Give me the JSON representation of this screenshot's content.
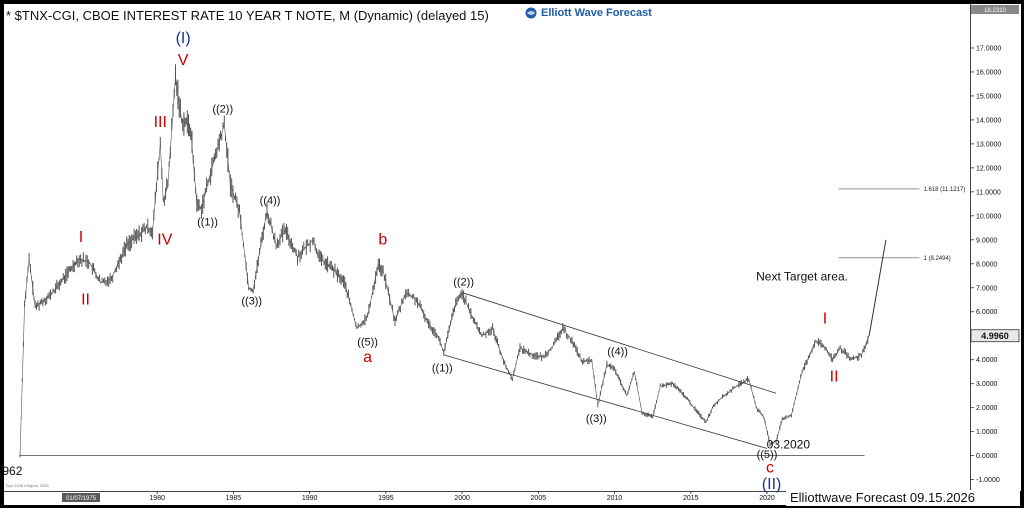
{
  "window": {
    "title": "* $TNX-CGI, CBOE INTEREST RATE 10 YEAR T NOTE, M (Dynamic) (delayed 15)",
    "logo_text": "Elliott Wave Forecast",
    "footer": "Elliottwave Forecast  09.15.2026",
    "copyright": "Dyn 2026 eSignal, 2026",
    "date_box": "01/07/1975",
    "last_price": "4.9960",
    "top_price": "18.2310"
  },
  "colors": {
    "price_bars": "#555555",
    "wave_red": "#cc0000",
    "wave_blue": "#1a3399",
    "wave_black": "#111111",
    "last_price_box": "#e8e8e8",
    "logo": "#1f5ea8"
  },
  "chart_data": {
    "type": "line",
    "title": "* $TNX-CGI, CBOE INTEREST RATE 10 YEAR T NOTE, M (Dynamic) (delayed 15)",
    "xlabel": "",
    "ylabel": "",
    "xlim": [
      1971,
      2034.3
    ],
    "ylim": [
      -1.35,
      18.5
    ],
    "y_ticks": [
      "-1.0000",
      "0.0000",
      "1.0000",
      "2.0000",
      "3.0000",
      "4.0000",
      "5.0000",
      "6.0000",
      "7.0000",
      "8.0000",
      "9.0000",
      "10.0000",
      "11.0000",
      "12.0000",
      "13.0000",
      "14.0000",
      "15.0000",
      "16.0000",
      "17.0000"
    ],
    "x_ticks": [
      "1980",
      "1985",
      "1990",
      "1995",
      "2000",
      "2005",
      "2010",
      "2015",
      "2020"
    ],
    "grid": false,
    "series": [
      {
        "values_x": [
          1971.0,
          1971.3,
          1971.6,
          1972.0,
          1973.0,
          1974.0,
          1974.8,
          1975.5,
          1976.3,
          1977.0,
          1978.0,
          1979.3,
          1979.7,
          1980.2,
          1980.4,
          1980.7,
          1981.2,
          1981.6,
          1981.9,
          1982.2,
          1982.6,
          1982.9,
          1983.5,
          1984.4,
          1984.8,
          1985.4,
          1986.0,
          1986.3,
          1986.8,
          1987.2,
          1987.8,
          1988.4,
          1989.2,
          1990.2,
          1990.7,
          1991.5,
          1992.3,
          1993.1,
          1993.8,
          1994.5,
          1994.9,
          1995.6,
          1996.3,
          1997.0,
          1997.8,
          1998.4,
          1998.8,
          1999.5,
          2000.0,
          2000.5,
          2001.3,
          2002.0,
          2002.8,
          2003.3,
          2003.8,
          2004.6,
          2005.3,
          2006.0,
          2006.6,
          2007.2,
          2007.9,
          2008.5,
          2008.9,
          2009.5,
          2010.0,
          2010.8,
          2011.3,
          2011.8,
          2012.5,
          2013.0,
          2013.8,
          2014.6,
          2015.2,
          2016.0,
          2016.5,
          2017.0,
          2018.0,
          2018.8,
          2019.3,
          2019.8,
          2020.2,
          2020.6,
          2021.0,
          2021.6,
          2022.3,
          2022.8,
          2023.2,
          2023.8,
          2024.3,
          2024.8,
          2025.5,
          2026.2,
          2026.7
        ],
        "values_y": [
          0.0,
          6.3,
          8.2,
          6.2,
          6.7,
          7.5,
          8.2,
          8.1,
          7.2,
          7.4,
          8.8,
          9.5,
          9.4,
          13.0,
          10.6,
          11.3,
          15.8,
          14.0,
          13.9,
          13.6,
          10.5,
          10.3,
          11.8,
          13.8,
          11.3,
          10.2,
          7.0,
          6.9,
          8.8,
          10.2,
          8.8,
          9.4,
          8.3,
          9.0,
          8.2,
          7.8,
          7.2,
          5.3,
          5.8,
          8.0,
          7.5,
          5.6,
          6.8,
          6.5,
          5.5,
          5.0,
          4.3,
          6.2,
          6.8,
          6.0,
          5.0,
          5.3,
          3.8,
          3.2,
          4.5,
          4.2,
          4.1,
          4.6,
          5.3,
          4.8,
          3.9,
          4.0,
          2.1,
          3.8,
          3.6,
          2.5,
          3.5,
          1.8,
          1.6,
          2.9,
          3.0,
          2.5,
          2.0,
          1.4,
          2.1,
          2.4,
          2.9,
          3.2,
          2.0,
          1.6,
          0.5,
          0.6,
          1.5,
          1.7,
          3.5,
          4.2,
          4.8,
          4.5,
          4.0,
          4.5,
          4.0,
          4.2,
          5.0
        ],
        "name": ""
      }
    ],
    "projection": {
      "x": [
        2026.7,
        2027.8
      ],
      "y": [
        5.0,
        9.0
      ]
    },
    "channel_lines": [
      {
        "x": [
          2000.0,
          2020.6
        ],
        "y": [
          6.8,
          2.6
        ]
      },
      {
        "x": [
          1998.8,
          2020.0
        ],
        "y": [
          4.2,
          0.3
        ]
      }
    ],
    "zero_line": {
      "x": [
        1971.0,
        2026.4
      ],
      "y": [
        0.0,
        0.0
      ]
    },
    "fib_levels": [
      {
        "label": "1.618 (11.1217)",
        "value": 11.1217,
        "x": [
          2024.7,
          2030.0
        ]
      },
      {
        "label": "1 (8.2494)",
        "value": 8.2494,
        "x": [
          2024.7,
          2030.0
        ]
      }
    ],
    "annotations": [
      {
        "text": "(I)",
        "x": 1981.7,
        "y": 17.2,
        "color": "blue",
        "size": "large"
      },
      {
        "text": "V",
        "x": 1981.7,
        "y": 16.3,
        "color": "red",
        "size": "large"
      },
      {
        "text": "III",
        "x": 1980.2,
        "y": 13.7,
        "color": "red",
        "size": "large"
      },
      {
        "text": "IV",
        "x": 1980.5,
        "y": 8.8,
        "color": "red",
        "size": "large"
      },
      {
        "text": "I",
        "x": 1975.0,
        "y": 8.9,
        "color": "red",
        "size": "large"
      },
      {
        "text": "II",
        "x": 1975.3,
        "y": 6.3,
        "color": "red",
        "size": "large"
      },
      {
        "text": "((2))",
        "x": 1984.3,
        "y": 14.3,
        "color": "black",
        "size": "small"
      },
      {
        "text": "((1))",
        "x": 1983.3,
        "y": 9.6,
        "color": "black",
        "size": "small"
      },
      {
        "text": "((4))",
        "x": 1987.4,
        "y": 10.5,
        "color": "black",
        "size": "small"
      },
      {
        "text": "((3))",
        "x": 1986.2,
        "y": 6.3,
        "color": "black",
        "size": "small"
      },
      {
        "text": "b",
        "x": 1994.8,
        "y": 8.8,
        "color": "red",
        "size": "large"
      },
      {
        "text": "((5))",
        "x": 1993.8,
        "y": 4.6,
        "color": "black",
        "size": "small"
      },
      {
        "text": "a",
        "x": 1993.8,
        "y": 3.9,
        "color": "red",
        "size": "large"
      },
      {
        "text": "((2))",
        "x": 2000.1,
        "y": 7.1,
        "color": "black",
        "size": "small"
      },
      {
        "text": "((1))",
        "x": 1998.7,
        "y": 3.5,
        "color": "black",
        "size": "small"
      },
      {
        "text": "((4))",
        "x": 2010.2,
        "y": 4.2,
        "color": "black",
        "size": "small"
      },
      {
        "text": "((3))",
        "x": 2008.8,
        "y": 1.4,
        "color": "black",
        "size": "small"
      },
      {
        "text": "((5))",
        "x": 2020.0,
        "y": -0.1,
        "color": "black",
        "size": "small"
      },
      {
        "text": "c",
        "x": 2020.2,
        "y": -0.7,
        "color": "red",
        "size": "large"
      },
      {
        "text": "(II)",
        "x": 2020.3,
        "y": -1.4,
        "color": "blue",
        "size": "large"
      },
      {
        "text": "03.2020",
        "x": 2021.4,
        "y": 0.3,
        "color": "black",
        "size": "medium"
      },
      {
        "text": "I",
        "x": 2023.8,
        "y": 5.5,
        "color": "red",
        "size": "large"
      },
      {
        "text": "II",
        "x": 2024.4,
        "y": 3.1,
        "color": "red",
        "size": "large"
      },
      {
        "text": "Next Target area.",
        "x": 2022.3,
        "y": 7.3,
        "color": "black",
        "size": "medium"
      },
      {
        "text": "962",
        "x": 1970.5,
        "y": -0.8,
        "color": "black",
        "size": "medium"
      }
    ]
  }
}
